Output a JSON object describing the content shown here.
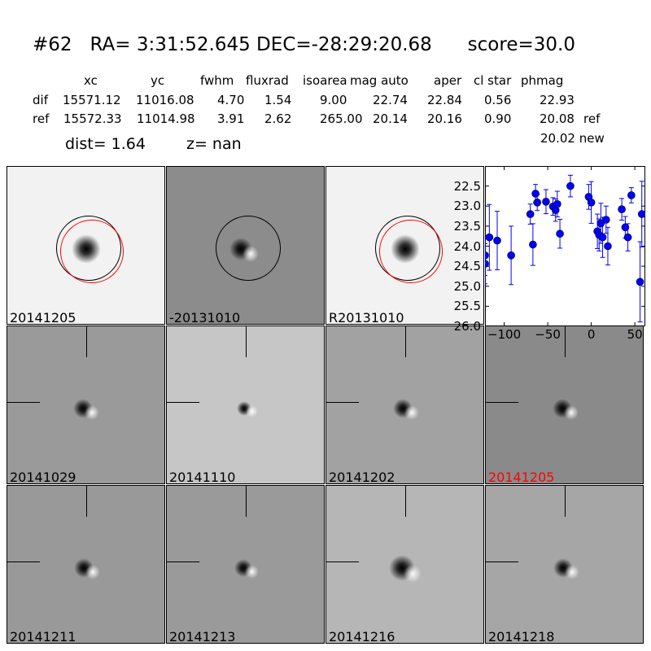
{
  "title": {
    "id": "#62",
    "ra": "RA= 3:31:52.645",
    "dec": "DEC=-28:29:20.68",
    "score": "score=30.0"
  },
  "table": {
    "headers": [
      "xc",
      "yc",
      "fwhm",
      "fluxrad",
      "isoarea",
      "mag auto",
      "aper",
      "cl star",
      "phmag"
    ],
    "rows": [
      {
        "label": "dif",
        "values": [
          "15571.12",
          "11016.08",
          "4.70",
          "1.54",
          "9.00",
          "22.74",
          "22.84",
          "0.56",
          "22.93"
        ],
        "suffix": ""
      },
      {
        "label": "ref",
        "values": [
          "15572.33",
          "11014.98",
          "3.91",
          "2.62",
          "265.00",
          "20.14",
          "20.16",
          "0.90",
          "20.08"
        ],
        "suffix": "ref"
      }
    ],
    "new_mag": "20.02 new",
    "dist": "dist=  1.64",
    "z": "z=   nan"
  },
  "panels": [
    {
      "label": "20141205",
      "bg": "#f2f2f2",
      "label_color": "#000000"
    },
    {
      "label": "-20131010",
      "bg": "#8c8c8c",
      "label_color": "#000000"
    },
    {
      "label": "R20131010",
      "bg": "#f2f2f2",
      "label_color": "#000000"
    },
    {
      "label": "20141029",
      "bg": "#9a9a9a",
      "label_color": "#000000"
    },
    {
      "label": "20141110",
      "bg": "#c6c6c6",
      "label_color": "#000000"
    },
    {
      "label": "20141202",
      "bg": "#a2a2a2",
      "label_color": "#000000"
    },
    {
      "label": "20141205",
      "bg": "#8a8a8a",
      "label_color": "#ff0000"
    },
    {
      "label": "20141211",
      "bg": "#999999",
      "label_color": "#000000"
    },
    {
      "label": "20141213",
      "bg": "#9a9a9a",
      "label_color": "#000000"
    },
    {
      "label": "20141216",
      "bg": "#b6b6b6",
      "label_color": "#000000"
    },
    {
      "label": "20141218",
      "bg": "#a6a6a6",
      "label_color": "#000000"
    }
  ],
  "chart_data": {
    "type": "scatter",
    "xlim": [
      -122,
      62
    ],
    "ylim": [
      26.0,
      22.0
    ],
    "y_inverted": true,
    "xticks": [
      -100,
      -50,
      0,
      50
    ],
    "yticks": [
      22.5,
      23.0,
      23.5,
      24.0,
      24.5,
      25.0,
      25.5,
      26.0
    ],
    "ytick_labels": [
      "22.5",
      "23.0",
      "23.5",
      "24.0",
      "24.5",
      "25.0",
      "25.5",
      "26.0"
    ],
    "xtick_labels": [
      "−100",
      "−50",
      "0",
      "50"
    ],
    "color": "#0000ff",
    "x": [
      -122,
      -122,
      -117,
      -108,
      -92,
      -70,
      -67,
      -64,
      -62,
      -52,
      -44,
      -41,
      -39,
      -36,
      -24,
      -3,
      0,
      7,
      9,
      11,
      13,
      17,
      19,
      35,
      39,
      42,
      46,
      56,
      58
    ],
    "y": [
      24.23,
      24.44,
      23.78,
      23.86,
      24.23,
      23.2,
      23.96,
      22.69,
      22.91,
      22.89,
      23.01,
      23.1,
      22.95,
      23.69,
      22.5,
      22.77,
      22.91,
      23.63,
      23.72,
      23.43,
      23.78,
      23.34,
      24.0,
      23.08,
      23.53,
      23.78,
      22.73,
      24.89,
      23.2
    ],
    "err": [
      0.5,
      0.5,
      0.82,
      0.73,
      0.73,
      0.25,
      0.52,
      0.23,
      0.2,
      0.3,
      0.22,
      0.28,
      0.32,
      0.36,
      0.27,
      0.31,
      0.52,
      0.43,
      0.4,
      0.5,
      0.5,
      0.34,
      0.47,
      0.27,
      0.27,
      0.34,
      0.19,
      1.0,
      0.82
    ]
  }
}
